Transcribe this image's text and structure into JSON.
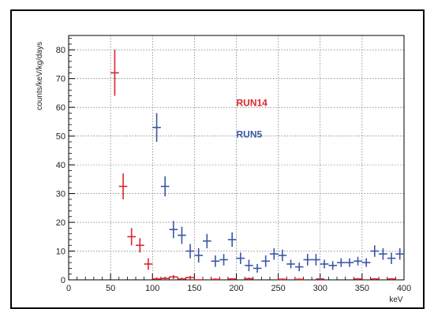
{
  "chart_data": {
    "type": "scatter",
    "xlabel": "keV",
    "ylabel": "counts/keV/kg/days",
    "xlim": [
      0,
      400
    ],
    "ylim": [
      0,
      85
    ],
    "xticks": [
      0,
      50,
      100,
      150,
      200,
      250,
      300,
      350,
      400
    ],
    "yticks": [
      0,
      10,
      20,
      30,
      40,
      50,
      60,
      70,
      80
    ],
    "grid": true,
    "series": [
      {
        "name": "RUN14",
        "color": "#d9262f",
        "points": [
          {
            "x": 55,
            "y": 72,
            "err": 8
          },
          {
            "x": 65,
            "y": 32.5,
            "err": 4.5
          },
          {
            "x": 75,
            "y": 15,
            "err": 3
          },
          {
            "x": 85,
            "y": 12,
            "err": 2.5
          },
          {
            "x": 95,
            "y": 5.5,
            "err": 2
          },
          {
            "x": 105,
            "y": 0.3,
            "err": 0.6
          },
          {
            "x": 115,
            "y": 0.5,
            "err": 0.6
          },
          {
            "x": 125,
            "y": 1,
            "err": 0.7
          },
          {
            "x": 135,
            "y": 0.3,
            "err": 0.5
          },
          {
            "x": 145,
            "y": 0.8,
            "err": 0.6
          },
          {
            "x": 155,
            "y": 0,
            "err": 0.3
          },
          {
            "x": 175,
            "y": 0.2,
            "err": 0.3
          },
          {
            "x": 195,
            "y": 0.3,
            "err": 0.3
          },
          {
            "x": 215,
            "y": 0.4,
            "err": 0.4
          },
          {
            "x": 255,
            "y": 0.2,
            "err": 0.3
          },
          {
            "x": 275,
            "y": 0.2,
            "err": 0.3
          },
          {
            "x": 300,
            "y": 0.3,
            "err": 0.3
          },
          {
            "x": 345,
            "y": 0.3,
            "err": 0.3
          },
          {
            "x": 365,
            "y": 0.3,
            "err": 0.3
          },
          {
            "x": 385,
            "y": 0.3,
            "err": 0.3
          }
        ]
      },
      {
        "name": "RUN5",
        "color": "#3a57a6",
        "points": [
          {
            "x": 105,
            "y": 53,
            "err": 5
          },
          {
            "x": 115,
            "y": 32.5,
            "err": 3.5
          },
          {
            "x": 125,
            "y": 17.5,
            "err": 3
          },
          {
            "x": 135,
            "y": 15.5,
            "err": 3
          },
          {
            "x": 145,
            "y": 10,
            "err": 2.5
          },
          {
            "x": 155,
            "y": 8.5,
            "err": 2.5
          },
          {
            "x": 165,
            "y": 13.5,
            "err": 2.5
          },
          {
            "x": 175,
            "y": 6.5,
            "err": 2
          },
          {
            "x": 185,
            "y": 7,
            "err": 2
          },
          {
            "x": 195,
            "y": 14,
            "err": 2.5
          },
          {
            "x": 205,
            "y": 7.5,
            "err": 2
          },
          {
            "x": 215,
            "y": 5,
            "err": 2
          },
          {
            "x": 225,
            "y": 4,
            "err": 1.5
          },
          {
            "x": 235,
            "y": 6.5,
            "err": 2
          },
          {
            "x": 245,
            "y": 9,
            "err": 2
          },
          {
            "x": 255,
            "y": 8.5,
            "err": 2
          },
          {
            "x": 265,
            "y": 5.5,
            "err": 1.5
          },
          {
            "x": 275,
            "y": 4.5,
            "err": 1.5
          },
          {
            "x": 285,
            "y": 7,
            "err": 2
          },
          {
            "x": 295,
            "y": 7,
            "err": 2
          },
          {
            "x": 305,
            "y": 5.5,
            "err": 1.5
          },
          {
            "x": 315,
            "y": 5,
            "err": 1.5
          },
          {
            "x": 325,
            "y": 6,
            "err": 1.5
          },
          {
            "x": 335,
            "y": 6,
            "err": 1.5
          },
          {
            "x": 345,
            "y": 6.5,
            "err": 1.5
          },
          {
            "x": 355,
            "y": 6,
            "err": 1.5
          },
          {
            "x": 365,
            "y": 10,
            "err": 2
          },
          {
            "x": 375,
            "y": 9,
            "err": 2
          },
          {
            "x": 385,
            "y": 7.5,
            "err": 2
          },
          {
            "x": 395,
            "y": 9,
            "err": 2
          }
        ]
      }
    ]
  }
}
